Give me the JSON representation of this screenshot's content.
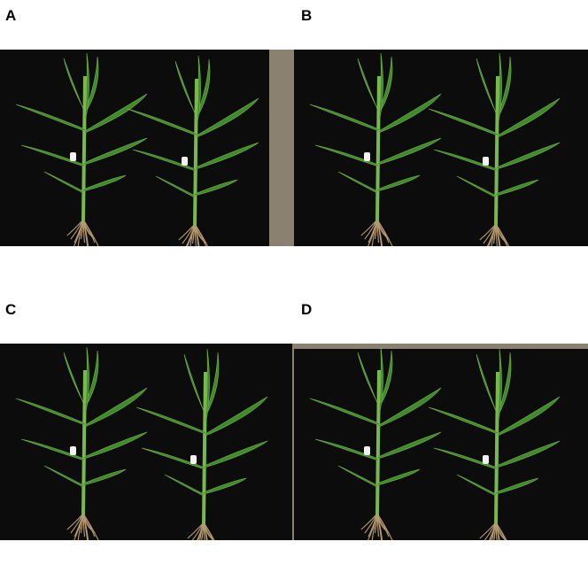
{
  "panels": [
    {
      "label": "A",
      "photo": "two-maize-seedlings-on-black-cloth"
    },
    {
      "label": "B",
      "photo": "two-maize-seedlings-on-black-cloth"
    },
    {
      "label": "C",
      "photo": "two-maize-seedlings-on-black-cloth"
    },
    {
      "label": "D",
      "photo": "two-maize-seedlings-on-black-cloth"
    }
  ],
  "colors": {
    "cloth": "#0c0c0c",
    "concrete": "#8a8170",
    "leaf": "#3f8a2a",
    "leaf_light": "#79b84e",
    "root": "#b59a72",
    "tag": "#f2f2f2"
  }
}
